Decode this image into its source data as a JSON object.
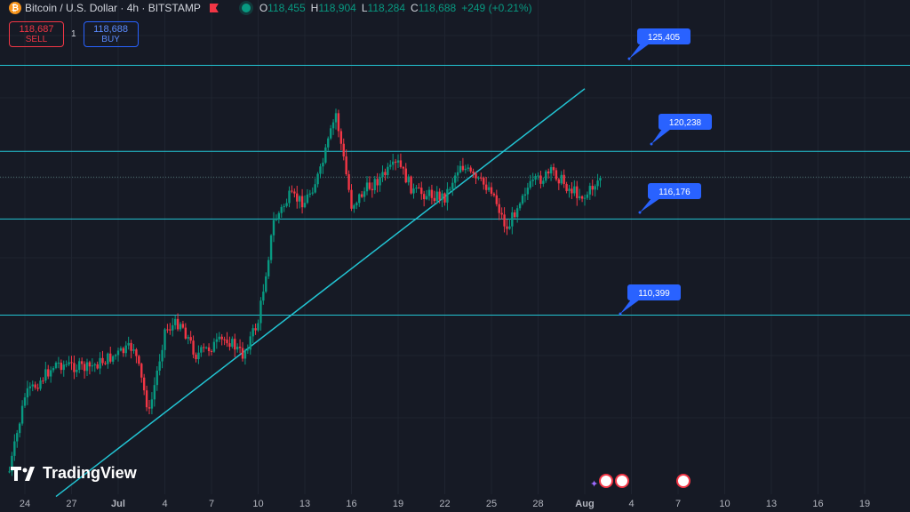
{
  "header": {
    "symbol": "Bitcoin / U.S. Dollar · 4h · BITSTAMP",
    "open_label": "O",
    "open": "118,455",
    "high_label": "H",
    "high": "118,904",
    "low_label": "L",
    "low": "118,284",
    "close_label": "C",
    "close": "118,688",
    "change": "+249 (+0.21%)"
  },
  "trade": {
    "sell_price": "118,687",
    "sell_label": "SELL",
    "spread": "1",
    "buy_price": "118,688",
    "buy_label": "BUY"
  },
  "logo": {
    "text": "TradingView"
  },
  "colors": {
    "up": "#089981",
    "down": "#f23645",
    "level": "#22c4d3",
    "label_bg": "#2962ff",
    "bg": "#161a25"
  },
  "chart_data": {
    "type": "candlestick",
    "title": "",
    "x_ticks": [
      "24",
      "27",
      "Jul",
      "4",
      "7",
      "10",
      "13",
      "16",
      "19",
      "22",
      "25",
      "28",
      "Aug",
      "4",
      "7",
      "10",
      "13",
      "16",
      "19"
    ],
    "horizontal_levels": [
      125405,
      120238,
      116176,
      110399
    ],
    "level_labels": [
      "125,405",
      "120,238",
      "116,176",
      "110,399"
    ],
    "current_price": 118688,
    "trendline": {
      "from": [
        "2025-06-26",
        99500
      ],
      "to": [
        "2025-07-30",
        124000
      ]
    },
    "close_path": [
      [
        "2025-06-23",
        101000
      ],
      [
        "2025-06-24",
        105500
      ],
      [
        "2025-06-26",
        107500
      ],
      [
        "2025-06-28",
        107200
      ],
      [
        "2025-07-01",
        108500
      ],
      [
        "2025-07-02",
        104500
      ],
      [
        "2025-07-03",
        109500
      ],
      [
        "2025-07-04",
        110000
      ],
      [
        "2025-07-05",
        108000
      ],
      [
        "2025-07-07",
        109000
      ],
      [
        "2025-07-08",
        108000
      ],
      [
        "2025-07-09",
        110000
      ],
      [
        "2025-07-10",
        116000
      ],
      [
        "2025-07-11",
        117500
      ],
      [
        "2025-07-12",
        117200
      ],
      [
        "2025-07-13",
        119000
      ],
      [
        "2025-07-14",
        122500
      ],
      [
        "2025-07-15",
        117000
      ],
      [
        "2025-07-16",
        118000
      ],
      [
        "2025-07-18",
        119500
      ],
      [
        "2025-07-19",
        117800
      ],
      [
        "2025-07-21",
        117500
      ],
      [
        "2025-07-22",
        119500
      ],
      [
        "2025-07-23",
        118500
      ],
      [
        "2025-07-24",
        118000
      ],
      [
        "2025-07-25",
        115500
      ],
      [
        "2025-07-26",
        117800
      ],
      [
        "2025-07-27",
        118500
      ],
      [
        "2025-07-28",
        119000
      ],
      [
        "2025-07-29",
        118000
      ],
      [
        "2025-07-30",
        117500
      ],
      [
        "2025-07-31",
        118688
      ]
    ]
  }
}
